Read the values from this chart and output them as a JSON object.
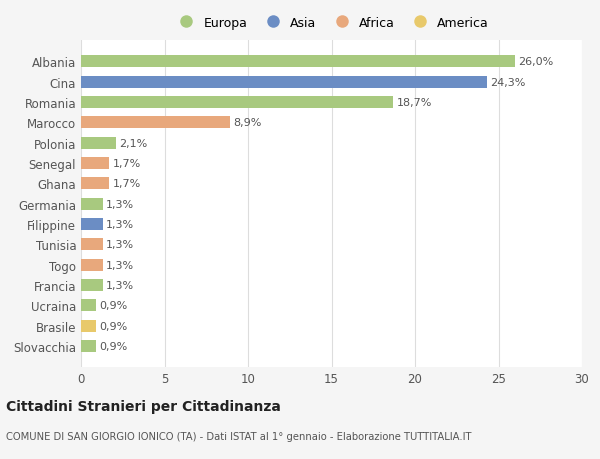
{
  "countries": [
    "Albania",
    "Cina",
    "Romania",
    "Marocco",
    "Polonia",
    "Senegal",
    "Ghana",
    "Germania",
    "Filippine",
    "Tunisia",
    "Togo",
    "Francia",
    "Ucraina",
    "Brasile",
    "Slovacchia"
  ],
  "values": [
    26.0,
    24.3,
    18.7,
    8.9,
    2.1,
    1.7,
    1.7,
    1.3,
    1.3,
    1.3,
    1.3,
    1.3,
    0.9,
    0.9,
    0.9
  ],
  "labels": [
    "26,0%",
    "24,3%",
    "18,7%",
    "8,9%",
    "2,1%",
    "1,7%",
    "1,7%",
    "1,3%",
    "1,3%",
    "1,3%",
    "1,3%",
    "1,3%",
    "0,9%",
    "0,9%",
    "0,9%"
  ],
  "colors": [
    "#a8c97f",
    "#6b8dc4",
    "#a8c97f",
    "#e8a87c",
    "#a8c97f",
    "#e8a87c",
    "#e8a87c",
    "#a8c97f",
    "#6b8dc4",
    "#e8a87c",
    "#e8a87c",
    "#a8c97f",
    "#a8c97f",
    "#e8c96b",
    "#a8c97f"
  ],
  "legend_labels": [
    "Europa",
    "Asia",
    "Africa",
    "America"
  ],
  "legend_colors": [
    "#a8c97f",
    "#6b8dc4",
    "#e8a87c",
    "#e8c96b"
  ],
  "title": "Cittadini Stranieri per Cittadinanza",
  "subtitle": "COMUNE DI SAN GIORGIO IONICO (TA) - Dati ISTAT al 1° gennaio - Elaborazione TUTTITALIA.IT",
  "xlim": [
    0,
    30
  ],
  "xticks": [
    0,
    5,
    10,
    15,
    20,
    25,
    30
  ],
  "background_color": "#f5f5f5",
  "bar_background": "#ffffff",
  "grid_color": "#dddddd"
}
